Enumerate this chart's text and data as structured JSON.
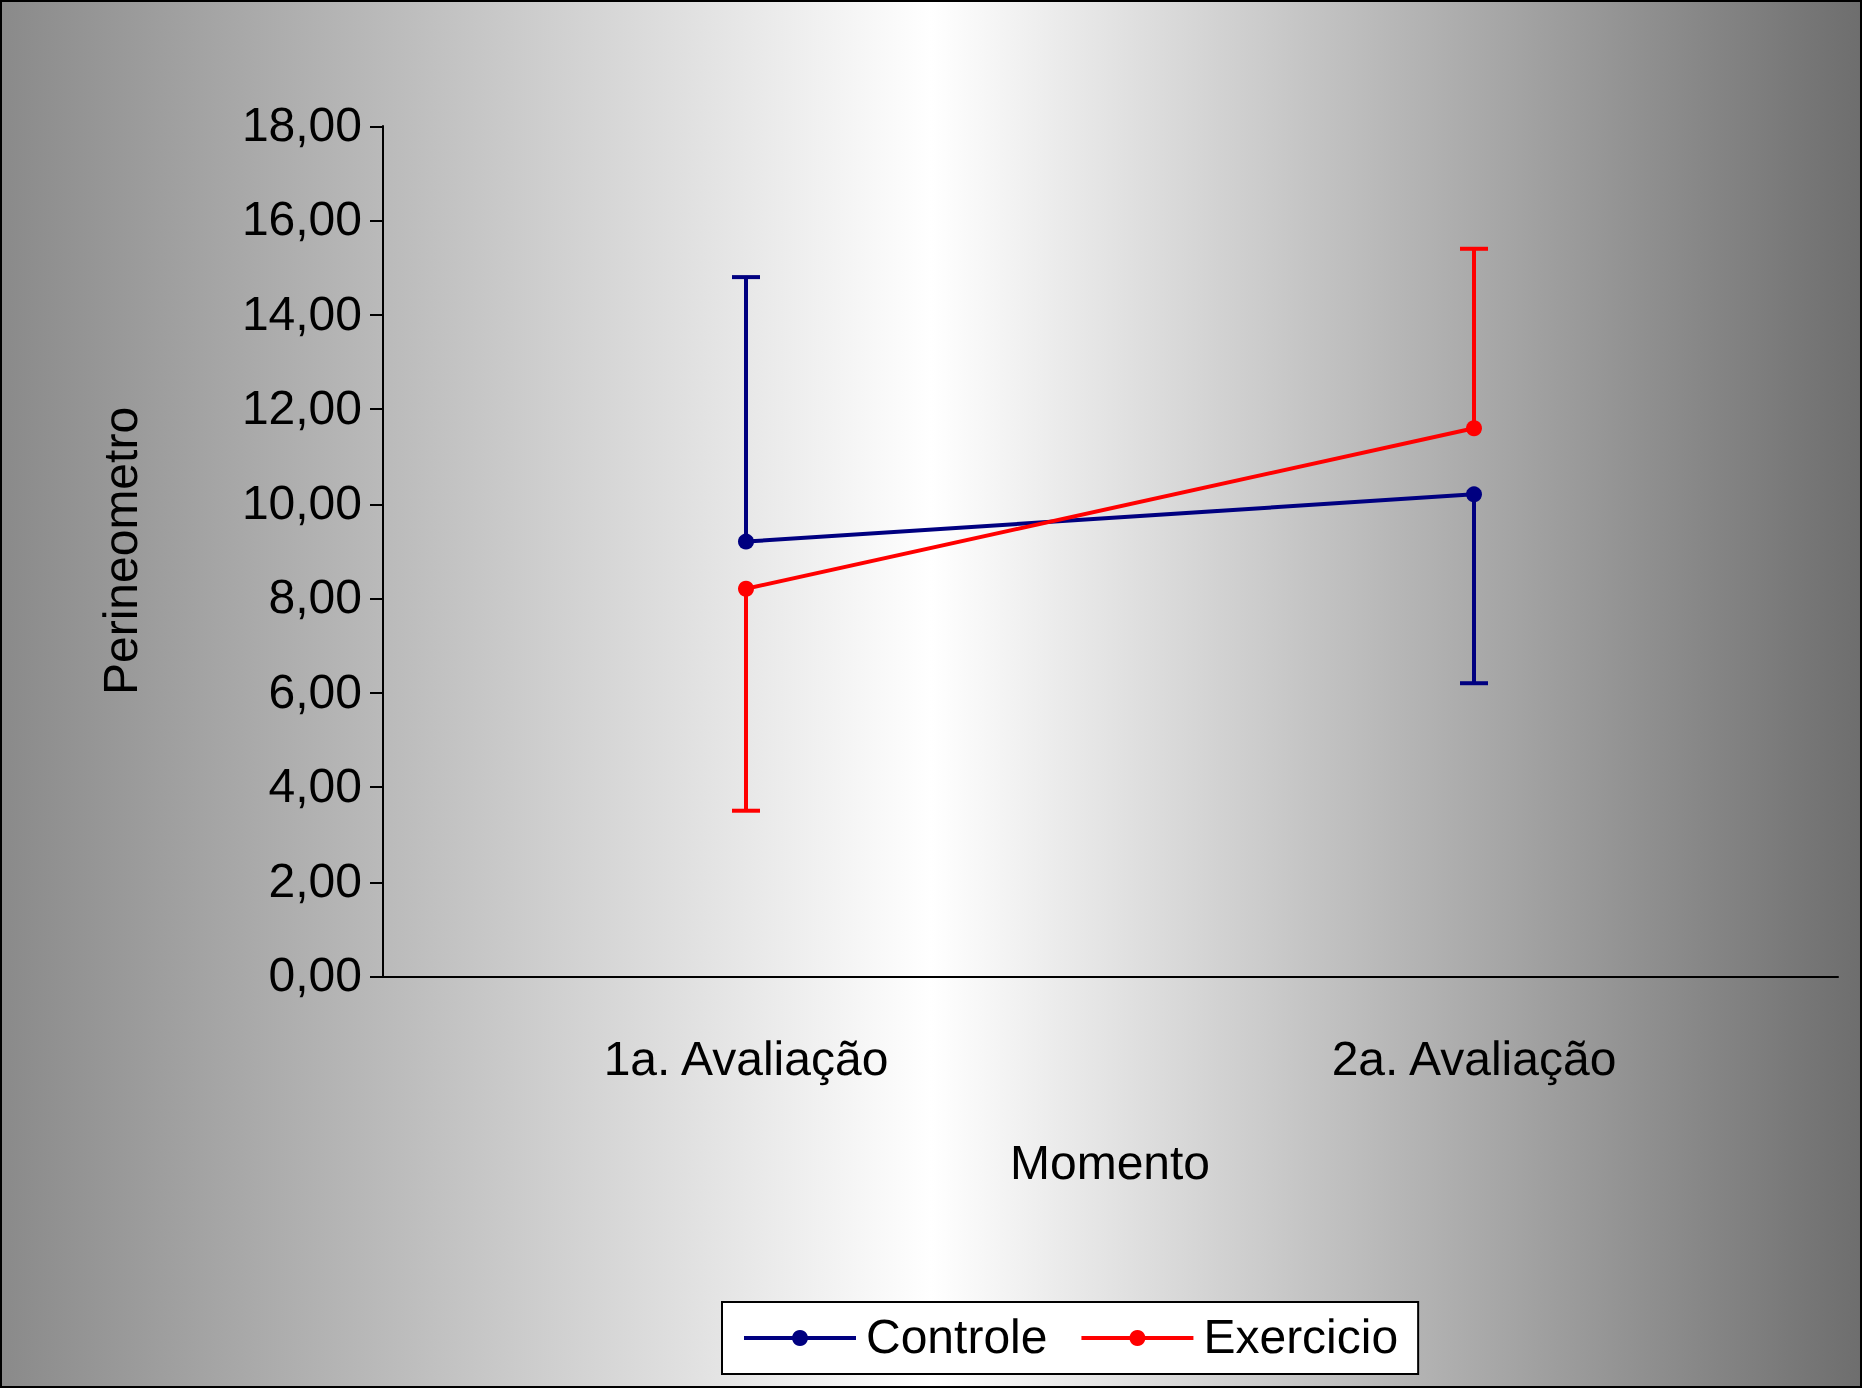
{
  "chart_data": {
    "type": "line",
    "xlabel": "Momento",
    "ylabel": "Perineometro",
    "categories": [
      "1a. Avaliação",
      "2a. Avaliação"
    ],
    "series": [
      {
        "name": "Controle",
        "color": "#000080",
        "values": [
          9.2,
          10.2
        ],
        "errors": [
          [
            9.2,
            14.8
          ],
          [
            6.2,
            10.2
          ]
        ]
      },
      {
        "name": "Exercicio",
        "color": "#ff0000",
        "values": [
          8.2,
          11.6
        ],
        "errors": [
          [
            3.5,
            8.2
          ],
          [
            11.6,
            15.4
          ]
        ]
      }
    ],
    "ylim": [
      0,
      18
    ],
    "yticks": [
      {
        "value": 0,
        "label": "0,00"
      },
      {
        "value": 2,
        "label": "2,00"
      },
      {
        "value": 4,
        "label": "4,00"
      },
      {
        "value": 6,
        "label": "6,00"
      },
      {
        "value": 8,
        "label": "8,00"
      },
      {
        "value": 10,
        "label": "10,00"
      },
      {
        "value": 12,
        "label": "12,00"
      },
      {
        "value": 14,
        "label": "14,00"
      },
      {
        "value": 16,
        "label": "16,00"
      },
      {
        "value": 18,
        "label": "18,00"
      }
    ],
    "grid": false,
    "legend": "bottom",
    "marker": "circle",
    "line_style": "solid"
  }
}
